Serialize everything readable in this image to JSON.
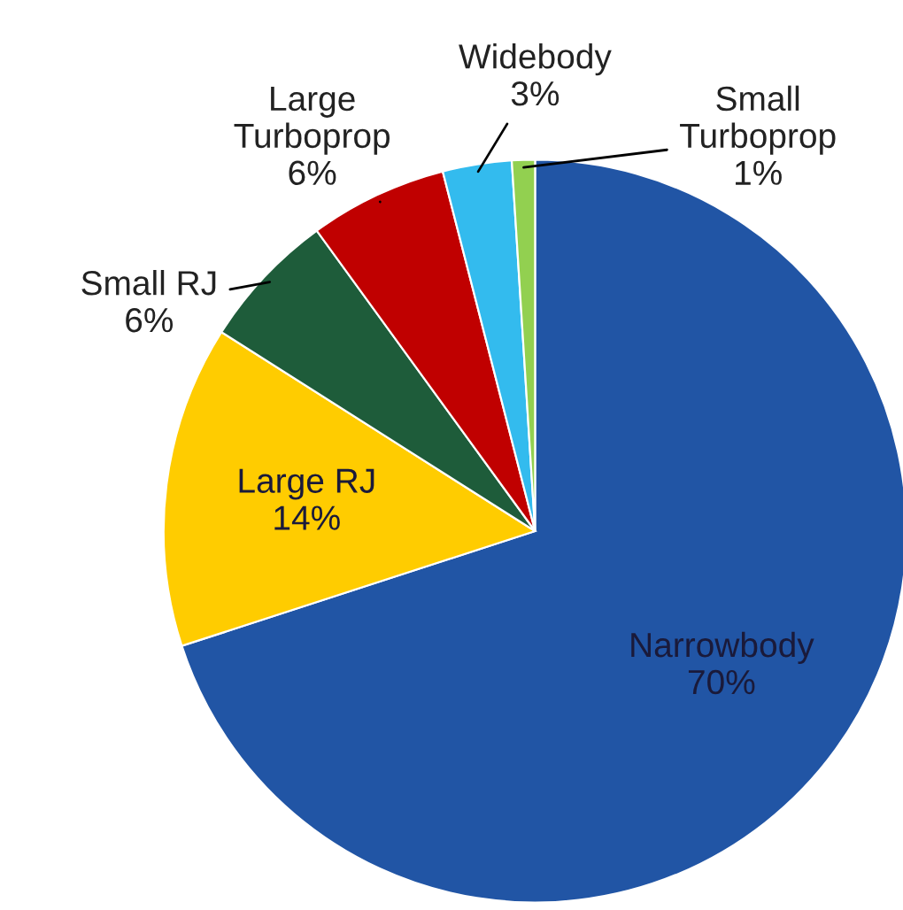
{
  "chart_data": {
    "type": "pie",
    "categories": [
      "Narrowbody",
      "Large RJ",
      "Small RJ",
      "Large\nTurboprop",
      "Widebody",
      "Small\nTurboprop"
    ],
    "values": [
      70,
      14,
      6,
      6,
      3,
      1
    ],
    "value_labels": [
      "70%",
      "14%",
      "6%",
      "6%",
      "3%",
      "1%"
    ],
    "colors": [
      "#2155a5",
      "#ffcc00",
      "#1e5c3a",
      "#c00000",
      "#33bbee",
      "#92d050"
    ],
    "legend": false
  }
}
